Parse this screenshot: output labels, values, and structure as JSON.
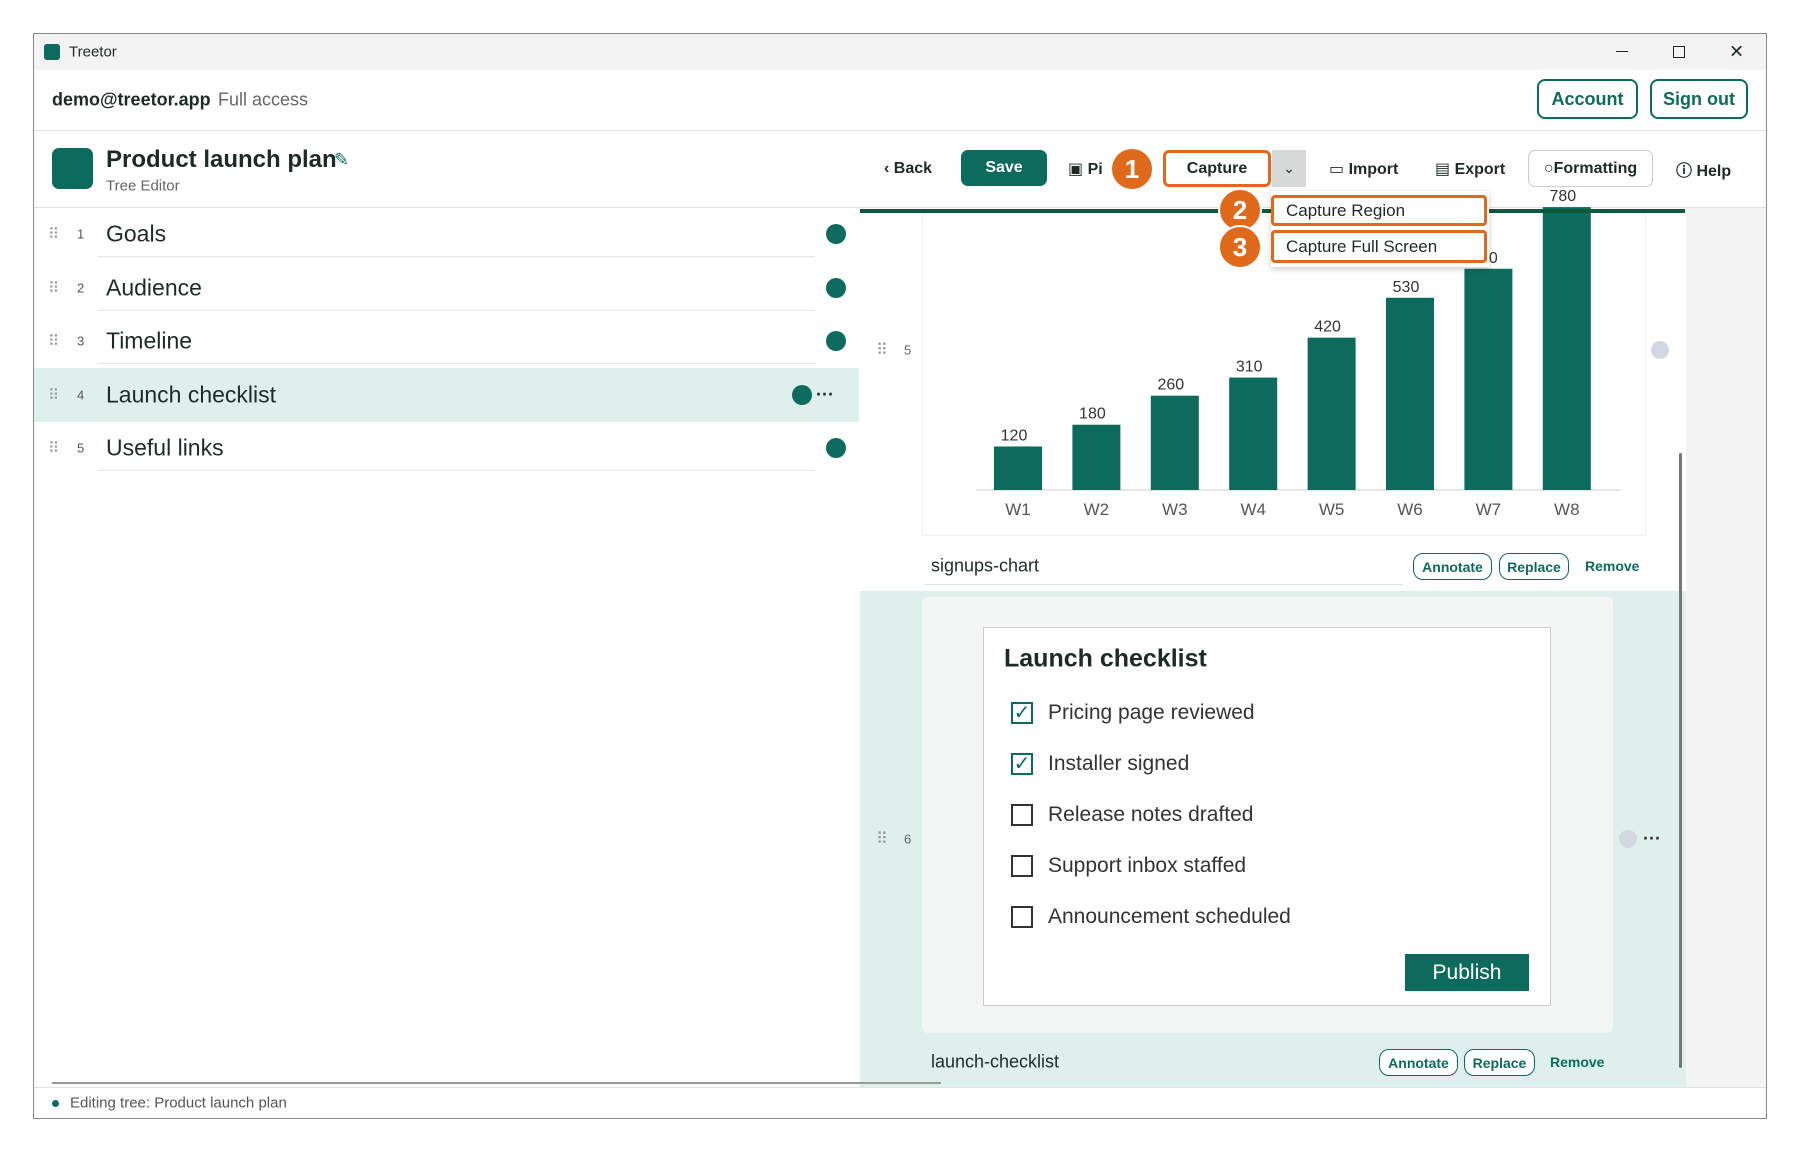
{
  "window": {
    "title": "Treetor"
  },
  "account": {
    "email": "demo@treetor.app",
    "access": "Full access",
    "buttons": [
      "Account",
      "Sign out"
    ]
  },
  "document": {
    "title": "Product launch plan",
    "subtitle": "Tree Editor"
  },
  "toolbar": {
    "back": "Back",
    "save": "Save",
    "picture": "Pi",
    "capture": "Capture",
    "import": "Import",
    "export": "Export",
    "formatting": "Formatting",
    "help": "Help"
  },
  "capture_menu": {
    "items": [
      "Capture Region",
      "Capture Full Screen"
    ]
  },
  "callouts": [
    1,
    2,
    3
  ],
  "outline": {
    "items": [
      {
        "number": 1,
        "label": "Goals"
      },
      {
        "number": 2,
        "label": "Audience"
      },
      {
        "number": 3,
        "label": "Timeline"
      },
      {
        "number": 4,
        "label": "Launch checklist"
      },
      {
        "number": 5,
        "label": "Useful links"
      }
    ]
  },
  "content": {
    "actions": [
      "Annotate",
      "Replace",
      "Remove"
    ],
    "rows": [
      {
        "number": 5,
        "caption": "signups-chart",
        "chart": {
          "type": "bar",
          "color": "#0d6b5e",
          "categories": [
            "W1",
            "W2",
            "W3",
            "W4",
            "W5",
            "W6",
            "W7",
            "W8"
          ],
          "values": [
            120,
            180,
            260,
            310,
            420,
            530,
            610,
            780
          ]
        }
      },
      {
        "number": 6,
        "caption": "launch-checklist",
        "checklist": {
          "title": "Launch checklist",
          "items": [
            {
              "label": "Pricing page reviewed",
              "checked": true
            },
            {
              "label": "Installer signed",
              "checked": true
            },
            {
              "label": "Release notes drafted",
              "checked": false
            },
            {
              "label": "Support inbox staffed",
              "checked": false
            },
            {
              "label": "Announcement scheduled",
              "checked": false
            }
          ],
          "button": "Publish"
        }
      }
    ]
  },
  "status": "Editing tree: Product launch plan"
}
